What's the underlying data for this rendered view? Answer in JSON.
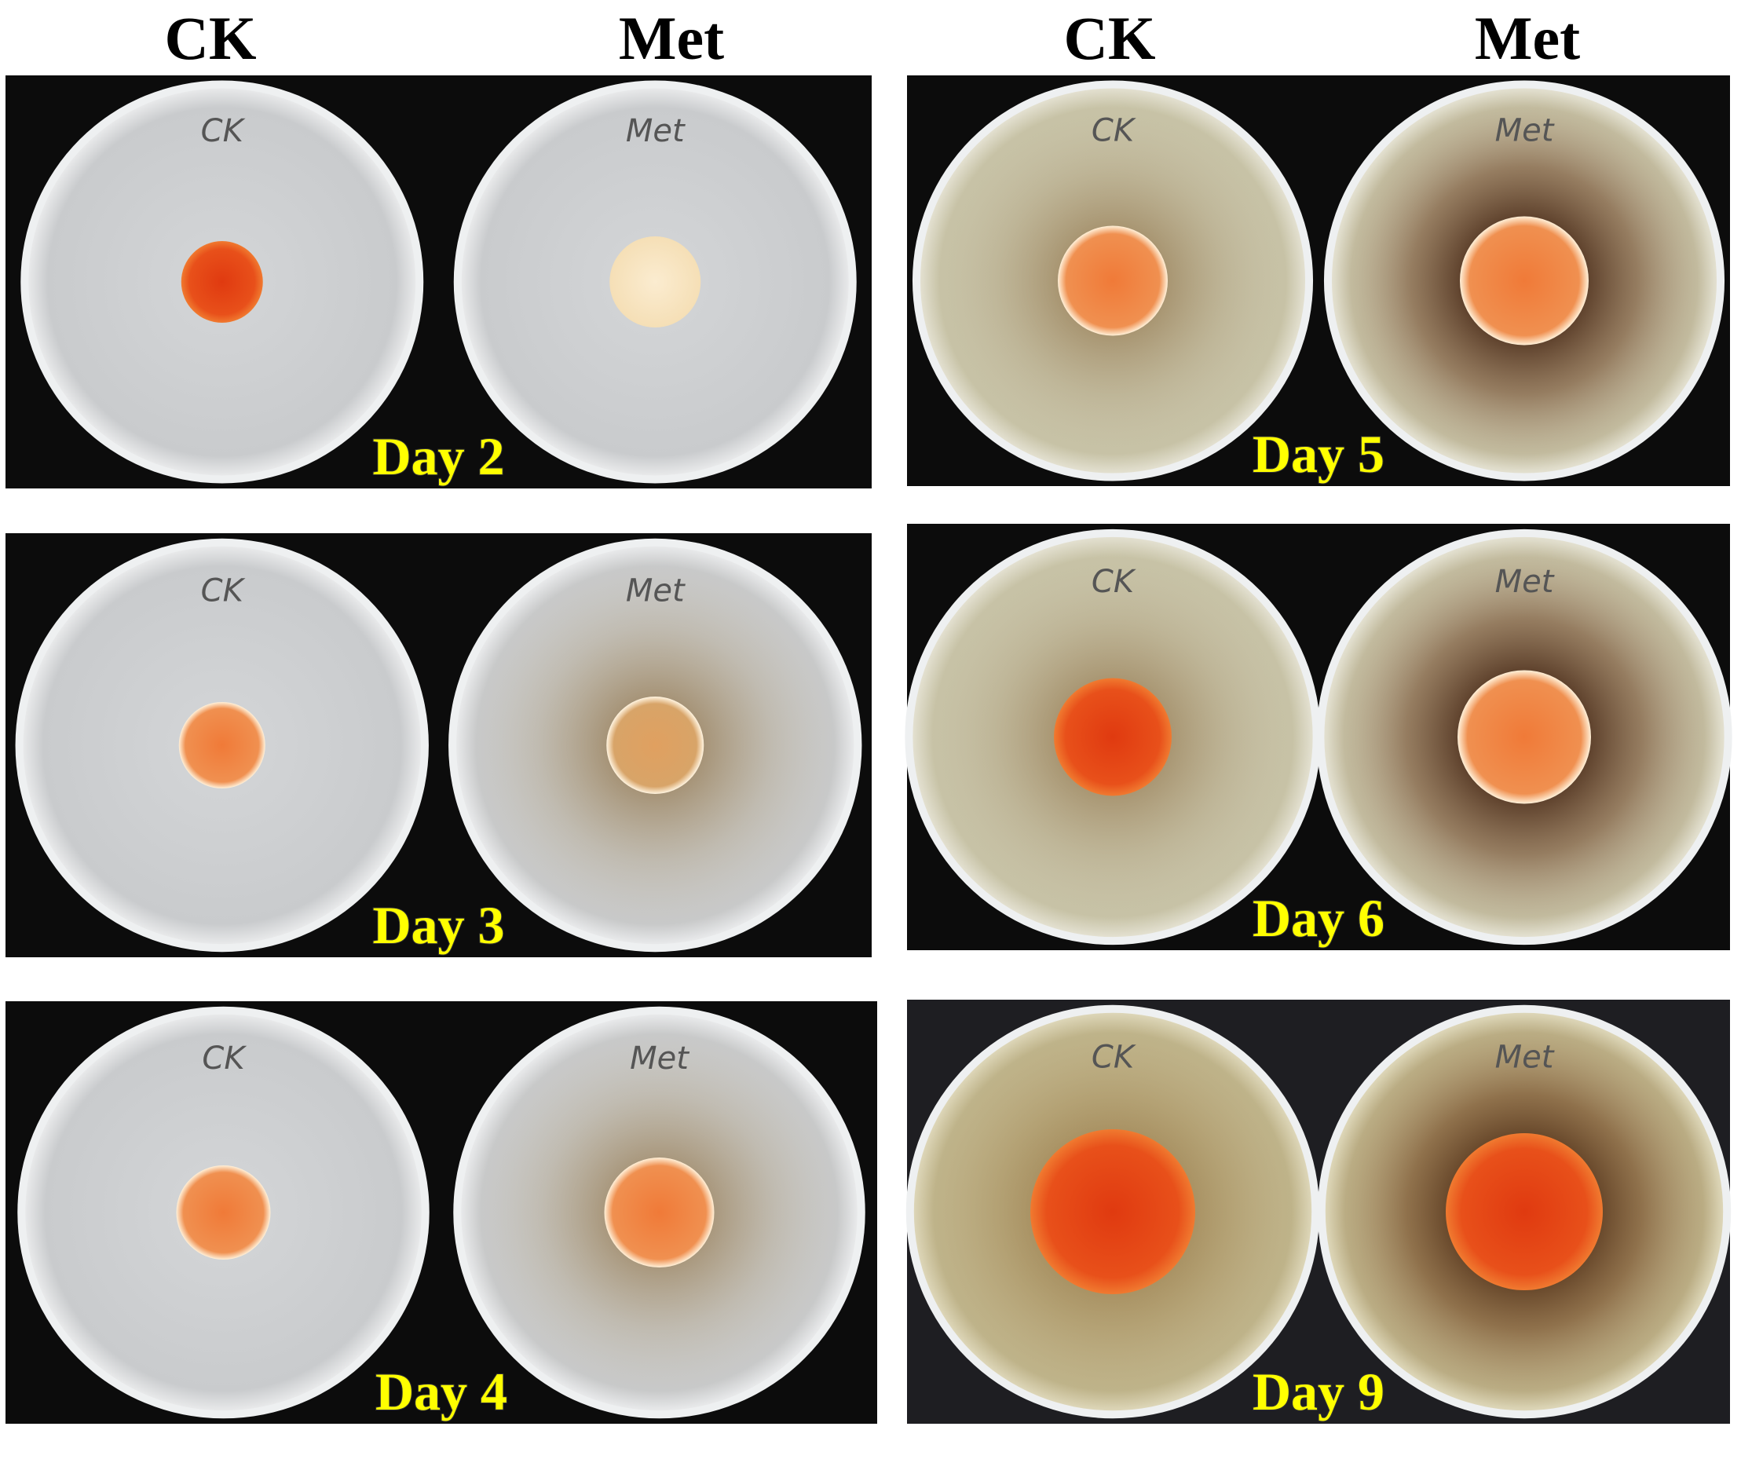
{
  "headers": [
    "CK",
    "Met",
    "CK",
    "Met"
  ],
  "panels": [
    {
      "label": "Day 2",
      "plates": [
        "CK",
        "Met"
      ]
    },
    {
      "label": "Day 3",
      "plates": [
        "CK",
        "Met"
      ]
    },
    {
      "label": "Day 4",
      "plates": [
        "CK",
        "Met"
      ]
    },
    {
      "label": "Day 5",
      "plates": [
        "CK",
        "Met"
      ]
    },
    {
      "label": "Day 6",
      "plates": [
        "CK",
        "Met"
      ]
    },
    {
      "label": "Day 9",
      "plates": [
        "CK",
        "Met"
      ]
    }
  ]
}
